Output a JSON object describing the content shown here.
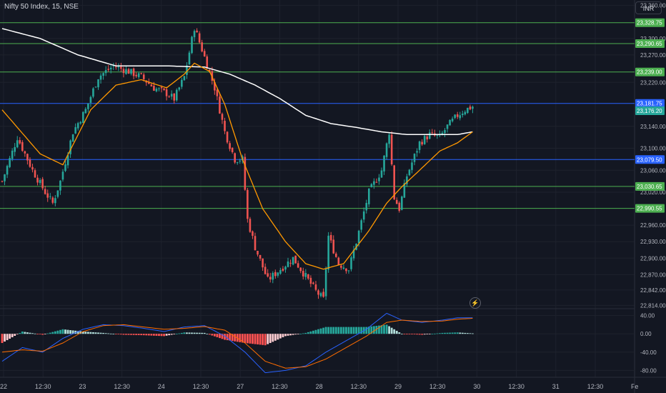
{
  "header": {
    "title": "Nifty 50 Index, 15, NSE",
    "currency": "INR"
  },
  "icons": {
    "flash": "lightning-icon"
  },
  "colors": {
    "background": "#131722",
    "grid": "#1e222d",
    "text": "#b2b5be",
    "up": "#26a69a",
    "down": "#ef5350",
    "ma_slow": "#ffffff",
    "ma_fast": "#ff9800",
    "level_green": "#4caf50",
    "level_blue": "#2962ff",
    "macd": "#2962ff",
    "signal": "#ff6d00",
    "hist_up": "#26a69a",
    "hist_up_weak": "#b2dfdb",
    "hist_down": "#ff5252",
    "hist_down_weak": "#ffcdd2"
  },
  "chart_data": [
    {
      "type": "candlestick",
      "y_axis_ticks": [
        "23,360.00",
        "23,300.00",
        "23,270.00",
        "23,220.00",
        "23,140.00",
        "23,100.00",
        "23,060.00",
        "23,020.00",
        "22,960.00",
        "22,930.00",
        "22,900.00",
        "22,870.00",
        "22,842.00",
        "22,814.00"
      ],
      "x_axis_ticks": [
        "22",
        "12:30",
        "23",
        "12:30",
        "24",
        "12:30",
        "27",
        "12:30",
        "28",
        "12:30",
        "29",
        "12:30",
        "30",
        "12:30",
        "31",
        "12:30",
        "Fe"
      ],
      "ylim": [
        22808,
        23370
      ],
      "levels": [
        {
          "label": "23,328.75",
          "value": 23328.75,
          "color": "green"
        },
        {
          "label": "23,290.65",
          "value": 23290.65,
          "color": "green"
        },
        {
          "label": "23,239.00",
          "value": 23239.0,
          "color": "green"
        },
        {
          "label": "23,181.75",
          "value": 23181.75,
          "color": "blue"
        },
        {
          "label": "23,079.50",
          "value": 23079.5,
          "color": "blue"
        },
        {
          "label": "23,030.65",
          "value": 23030.65,
          "color": "green"
        },
        {
          "label": "22,990.55",
          "value": 22990.55,
          "color": "green"
        }
      ],
      "price_labels": [
        {
          "label": "23,176.20",
          "value": 23176.2,
          "color": "green"
        }
      ],
      "anchors": [
        [
          0,
          23040
        ],
        [
          6,
          23120
        ],
        [
          12,
          23060
        ],
        [
          17,
          23020
        ],
        [
          20,
          23000
        ],
        [
          23,
          23040
        ],
        [
          28,
          23130
        ],
        [
          33,
          23170
        ],
        [
          38,
          23230
        ],
        [
          44,
          23250
        ],
        [
          50,
          23240
        ],
        [
          55,
          23230
        ],
        [
          60,
          23210
        ],
        [
          65,
          23200
        ],
        [
          68,
          23190
        ],
        [
          72,
          23230
        ],
        [
          76,
          23320
        ],
        [
          79,
          23280
        ],
        [
          84,
          23210
        ],
        [
          88,
          23130
        ],
        [
          92,
          23080
        ],
        [
          95,
          23080
        ],
        [
          97,
          22970
        ],
        [
          100,
          22920
        ],
        [
          105,
          22860
        ],
        [
          110,
          22880
        ],
        [
          115,
          22900
        ],
        [
          118,
          22880
        ],
        [
          121,
          22860
        ],
        [
          124,
          22840
        ],
        [
          127,
          22825
        ],
        [
          129,
          22940
        ],
        [
          133,
          22890
        ],
        [
          137,
          22880
        ],
        [
          140,
          22930
        ],
        [
          145,
          23020
        ],
        [
          150,
          23060
        ],
        [
          153,
          23130
        ],
        [
          155,
          23010
        ],
        [
          157,
          22990
        ],
        [
          160,
          23050
        ],
        [
          165,
          23110
        ],
        [
          169,
          23125
        ],
        [
          173,
          23120
        ],
        [
          176,
          23140
        ],
        [
          180,
          23160
        ],
        [
          183,
          23170
        ],
        [
          186,
          23176
        ]
      ],
      "ma_fast_anchors": [
        [
          0,
          23170
        ],
        [
          15,
          23090
        ],
        [
          24,
          23070
        ],
        [
          35,
          23170
        ],
        [
          45,
          23215
        ],
        [
          55,
          23225
        ],
        [
          65,
          23210
        ],
        [
          72,
          23235
        ],
        [
          76,
          23255
        ],
        [
          82,
          23240
        ],
        [
          88,
          23180
        ],
        [
          95,
          23080
        ],
        [
          103,
          22990
        ],
        [
          112,
          22930
        ],
        [
          120,
          22890
        ],
        [
          127,
          22880
        ],
        [
          135,
          22890
        ],
        [
          145,
          22950
        ],
        [
          152,
          23000
        ],
        [
          158,
          23030
        ],
        [
          165,
          23060
        ],
        [
          173,
          23095
        ],
        [
          180,
          23110
        ],
        [
          186,
          23130
        ]
      ],
      "ma_slow_anchors": [
        [
          0,
          23318
        ],
        [
          15,
          23300
        ],
        [
          30,
          23270
        ],
        [
          45,
          23250
        ],
        [
          65,
          23250
        ],
        [
          80,
          23248
        ],
        [
          90,
          23235
        ],
        [
          100,
          23215
        ],
        [
          110,
          23190
        ],
        [
          120,
          23160
        ],
        [
          130,
          23145
        ],
        [
          140,
          23138
        ],
        [
          150,
          23130
        ],
        [
          160,
          23125
        ],
        [
          170,
          23125
        ],
        [
          180,
          23125
        ],
        [
          186,
          23130
        ]
      ]
    },
    {
      "type": "macd",
      "y_axis_ticks": [
        "40.00",
        "0.00",
        "-40.00",
        "-80.00"
      ],
      "ylim": [
        -95,
        55
      ],
      "macd_anchors": [
        [
          0,
          -60
        ],
        [
          8,
          -30
        ],
        [
          16,
          -40
        ],
        [
          24,
          -10
        ],
        [
          32,
          10
        ],
        [
          40,
          20
        ],
        [
          48,
          18
        ],
        [
          56,
          12
        ],
        [
          64,
          5
        ],
        [
          72,
          15
        ],
        [
          80,
          18
        ],
        [
          88,
          -5
        ],
        [
          96,
          -40
        ],
        [
          104,
          -85
        ],
        [
          112,
          -80
        ],
        [
          120,
          -70
        ],
        [
          128,
          -40
        ],
        [
          136,
          -15
        ],
        [
          144,
          10
        ],
        [
          152,
          45
        ],
        [
          158,
          30
        ],
        [
          166,
          25
        ],
        [
          174,
          30
        ],
        [
          180,
          35
        ],
        [
          186,
          35
        ]
      ],
      "signal_anchors": [
        [
          0,
          -40
        ],
        [
          8,
          -35
        ],
        [
          16,
          -38
        ],
        [
          24,
          -20
        ],
        [
          32,
          5
        ],
        [
          40,
          18
        ],
        [
          48,
          20
        ],
        [
          56,
          15
        ],
        [
          64,
          10
        ],
        [
          72,
          12
        ],
        [
          80,
          16
        ],
        [
          88,
          8
        ],
        [
          96,
          -20
        ],
        [
          104,
          -60
        ],
        [
          112,
          -75
        ],
        [
          120,
          -72
        ],
        [
          128,
          -55
        ],
        [
          136,
          -30
        ],
        [
          144,
          -5
        ],
        [
          152,
          25
        ],
        [
          158,
          30
        ],
        [
          166,
          27
        ],
        [
          174,
          28
        ],
        [
          180,
          32
        ],
        [
          186,
          34
        ]
      ]
    }
  ]
}
